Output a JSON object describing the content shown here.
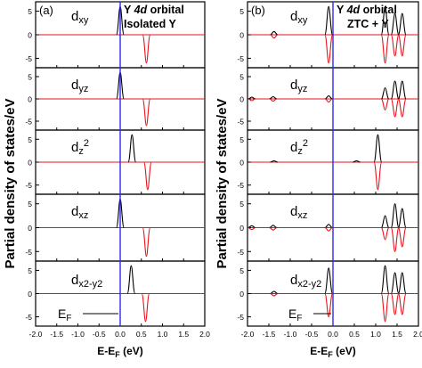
{
  "figure": {
    "ylabel": "Partial density of states/eV",
    "colors": {
      "black": "#000000",
      "red": "#e8121c",
      "fermi": "#2a2af0",
      "frame": "#000000"
    }
  },
  "chart_data": [
    {
      "panel": "a",
      "label": "(a)",
      "type": "line",
      "title_line1_pre": "Y ",
      "title_line1_ital": "4d",
      "title_line1_post": " orbital",
      "title_line2": "Isolated Y",
      "xlabel": "E-E",
      "xlabel_sub": "F",
      "xlabel_unit": " (eV)",
      "xlim": [
        -2.0,
        2.0
      ],
      "ylim": [
        -7,
        7
      ],
      "xticks": [
        "-2.0",
        "-1.5",
        "-1.0",
        "-0.5",
        "0.0",
        "0.5",
        "1.0",
        "1.5",
        "2.0"
      ],
      "yticks": [
        "5",
        "0",
        "-5"
      ],
      "fermi_label": "E",
      "fermi_sub": "F",
      "orbitals": [
        {
          "main": "d",
          "sub": "xy",
          "sup": "",
          "up": [
            {
              "e": 0.0,
              "h": 6.0
            }
          ],
          "down": [
            {
              "e": 0.62,
              "h": -6.0
            }
          ]
        },
        {
          "main": "d",
          "sub": "yz",
          "sup": "",
          "up": [
            {
              "e": 0.0,
              "h": 6.0
            }
          ],
          "down": [
            {
              "e": 0.62,
              "h": -6.0
            }
          ]
        },
        {
          "main": "d",
          "sub": "z",
          "sup": "2",
          "up": [
            {
              "e": 0.28,
              "h": 6.0
            }
          ],
          "down": [
            {
              "e": 0.65,
              "h": -6.0
            }
          ]
        },
        {
          "main": "d",
          "sub": "xz",
          "sup": "",
          "up": [
            {
              "e": 0.0,
              "h": 6.0
            }
          ],
          "down": [
            {
              "e": 0.62,
              "h": -6.0
            }
          ]
        },
        {
          "main": "d",
          "sub": "x2-y2",
          "sup": "",
          "up": [
            {
              "e": 0.26,
              "h": 6.0
            }
          ],
          "down": [
            {
              "e": 0.6,
              "h": -6.0
            }
          ]
        }
      ]
    },
    {
      "panel": "b",
      "label": "(b)",
      "type": "line",
      "title_line1_pre": "Y ",
      "title_line1_ital": "4d",
      "title_line1_post": " orbital",
      "title_line2": "ZTC + Y",
      "xlabel": "E-E",
      "xlabel_sub": "F",
      "xlabel_unit": " (eV)",
      "xlim": [
        -2.0,
        2.0
      ],
      "ylim": [
        -7,
        7
      ],
      "xticks": [
        "-2.0",
        "-1.5",
        "-1.0",
        "-0.5",
        "0.0",
        "0.5",
        "1.0",
        "1.5",
        "2.0"
      ],
      "yticks": [
        "5",
        "0",
        "-5"
      ],
      "fermi_label": "E",
      "fermi_sub": "F",
      "orbitals": [
        {
          "main": "d",
          "sub": "xy",
          "sup": "",
          "up": [
            {
              "e": -1.38,
              "h": 0.7
            },
            {
              "e": -0.1,
              "h": 6.0
            },
            {
              "e": 1.22,
              "h": 6.0
            },
            {
              "e": 1.45,
              "h": 4.5
            },
            {
              "e": 1.62,
              "h": 4.5
            }
          ],
          "down": [
            {
              "e": -1.38,
              "h": -0.7
            },
            {
              "e": -0.1,
              "h": -6.0
            },
            {
              "e": 1.22,
              "h": -6.0
            },
            {
              "e": 1.45,
              "h": -4.5
            },
            {
              "e": 1.62,
              "h": -4.5
            }
          ]
        },
        {
          "main": "d",
          "sub": "yz",
          "sup": "",
          "up": [
            {
              "e": -1.9,
              "h": 0.4
            },
            {
              "e": -1.4,
              "h": 0.5
            },
            {
              "e": -0.1,
              "h": 0.7
            },
            {
              "e": 1.22,
              "h": 2.5
            },
            {
              "e": 1.45,
              "h": 4.0
            },
            {
              "e": 1.62,
              "h": 4.0
            }
          ],
          "down": [
            {
              "e": -1.9,
              "h": -0.4
            },
            {
              "e": -1.4,
              "h": -0.5
            },
            {
              "e": -0.1,
              "h": -0.7
            },
            {
              "e": 1.22,
              "h": -2.5
            },
            {
              "e": 1.45,
              "h": -4.0
            },
            {
              "e": 1.62,
              "h": -4.0
            }
          ]
        },
        {
          "main": "d",
          "sub": "z",
          "sup": "2",
          "up": [
            {
              "e": -1.38,
              "h": 0.3
            },
            {
              "e": 0.55,
              "h": 0.3
            },
            {
              "e": 1.05,
              "h": 6.0
            }
          ],
          "down": [
            {
              "e": 1.05,
              "h": -6.0
            }
          ]
        },
        {
          "main": "d",
          "sub": "xz",
          "sup": "",
          "up": [
            {
              "e": -1.9,
              "h": 0.4
            },
            {
              "e": -1.4,
              "h": 0.5
            },
            {
              "e": -0.1,
              "h": 0.7
            },
            {
              "e": 1.22,
              "h": 2.5
            },
            {
              "e": 1.45,
              "h": 5.0
            },
            {
              "e": 1.62,
              "h": 4.0
            }
          ],
          "down": [
            {
              "e": -1.9,
              "h": -0.4
            },
            {
              "e": -1.4,
              "h": -0.5
            },
            {
              "e": -0.1,
              "h": -0.7
            },
            {
              "e": 1.22,
              "h": -2.5
            },
            {
              "e": 1.45,
              "h": -5.0
            },
            {
              "e": 1.62,
              "h": -4.0
            }
          ]
        },
        {
          "main": "d",
          "sub": "x2-y2",
          "sup": "",
          "up": [
            {
              "e": -1.38,
              "h": 0.5
            },
            {
              "e": -0.1,
              "h": 5.5
            },
            {
              "e": 1.22,
              "h": 6.0
            },
            {
              "e": 1.45,
              "h": 4.5
            },
            {
              "e": 1.62,
              "h": 4.5
            }
          ],
          "down": [
            {
              "e": -1.38,
              "h": -0.5
            },
            {
              "e": -0.1,
              "h": -5.0
            },
            {
              "e": 1.22,
              "h": -6.0
            },
            {
              "e": 1.45,
              "h": -4.5
            },
            {
              "e": 1.62,
              "h": -4.5
            }
          ]
        }
      ]
    }
  ]
}
